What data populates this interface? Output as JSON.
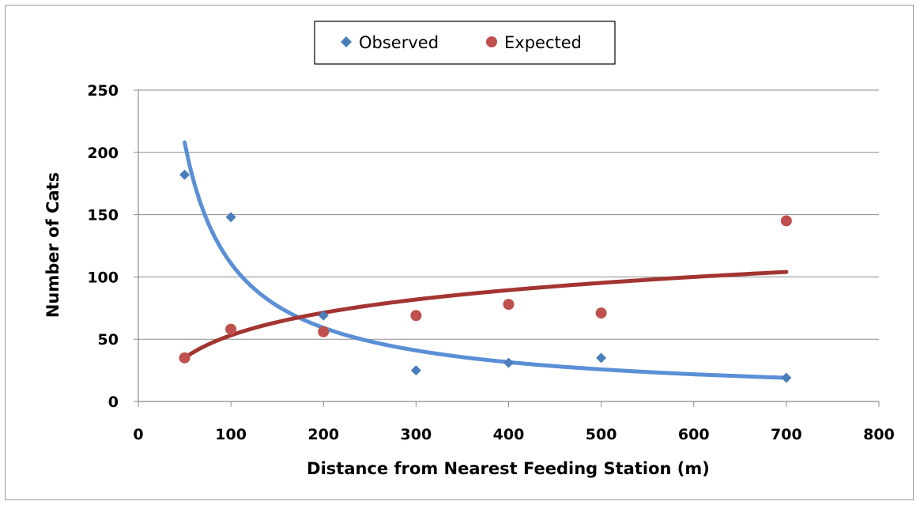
{
  "chart_data": {
    "type": "scatter",
    "xlabel": "Distance from Nearest Feeding Station (m)",
    "ylabel": "Number of Cats",
    "xlim": [
      0,
      800
    ],
    "ylim": [
      0,
      250
    ],
    "x_ticks": [
      "0",
      "100",
      "200",
      "300",
      "400",
      "500",
      "600",
      "700",
      "800"
    ],
    "y_ticks": [
      "0",
      "50",
      "100",
      "150",
      "200",
      "250"
    ],
    "grid": "horizontal",
    "legend_position": "top-center",
    "series": [
      {
        "name": "Observed",
        "marker": "diamond",
        "color": "#4a7ebb",
        "x": [
          50,
          100,
          200,
          300,
          400,
          500,
          700
        ],
        "y": [
          182,
          148,
          69,
          25,
          31,
          35,
          19
        ],
        "trendline": {
          "type": "power",
          "color": "#5b8fd6",
          "x_range": [
            50,
            700
          ],
          "y_start": 208,
          "y_end": 19
        }
      },
      {
        "name": "Expected",
        "marker": "circle",
        "color": "#c0504d",
        "x": [
          50,
          100,
          200,
          300,
          400,
          500,
          700
        ],
        "y": [
          35,
          58,
          56,
          69,
          78,
          71,
          145
        ],
        "trendline": {
          "type": "logarithmic",
          "color": "#a33531",
          "x_range": [
            50,
            700
          ],
          "y_start": 35,
          "y_end": 104
        }
      }
    ]
  }
}
